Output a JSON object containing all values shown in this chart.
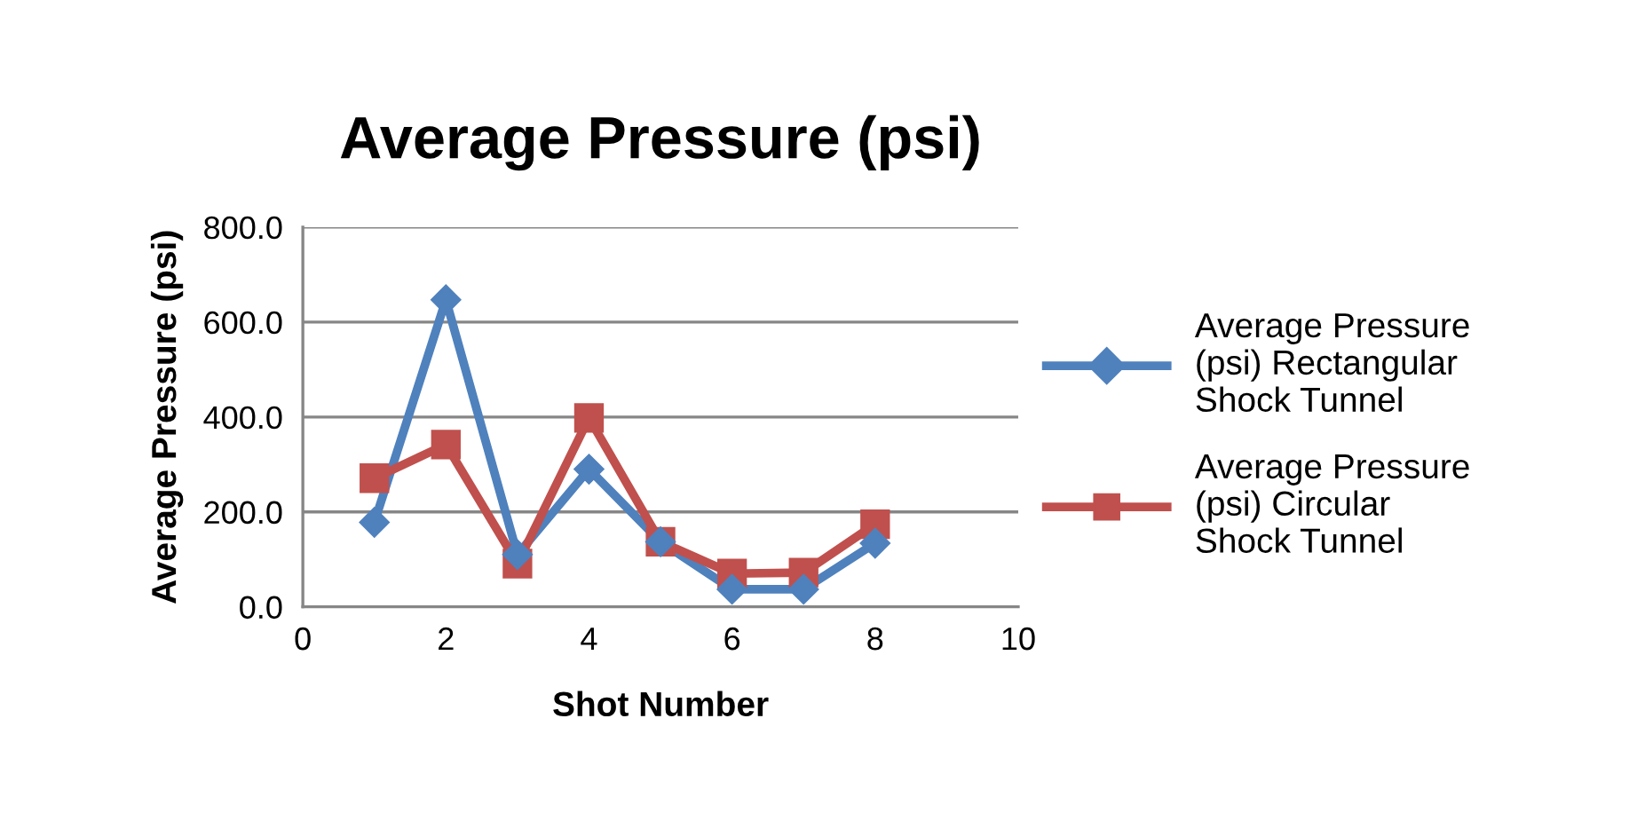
{
  "chart_data": {
    "type": "line",
    "title": "Average Pressure (psi)",
    "xlabel": "Shot Number",
    "ylabel": "Average Pressure (psi)",
    "x": [
      1,
      2,
      3,
      4,
      5,
      6,
      7,
      8
    ],
    "series": [
      {
        "name": "Average Pressure (psi) Rectangular Shock Tunnel",
        "color": "#4f81bd",
        "marker": "diamond",
        "values": [
          178,
          647,
          110,
          290,
          137,
          37,
          37,
          134
        ]
      },
      {
        "name": "Average Pressure (psi) Circular Shock Tunnel",
        "color": "#c0504d",
        "marker": "square",
        "values": [
          271,
          342,
          91,
          398,
          137,
          70,
          72,
          174
        ]
      }
    ],
    "xlim": [
      0,
      10
    ],
    "xticks": [
      0,
      2,
      4,
      6,
      8,
      10
    ],
    "ylim": [
      0,
      800
    ],
    "yticks": [
      {
        "value": 0,
        "label": "0.0"
      },
      {
        "value": 200,
        "label": "200.0"
      },
      {
        "value": 400,
        "label": "400.0"
      },
      {
        "value": 600,
        "label": "600.0"
      },
      {
        "value": 800,
        "label": "800.0"
      }
    ],
    "grid": "y",
    "legend": "right",
    "line_style": "solid"
  }
}
